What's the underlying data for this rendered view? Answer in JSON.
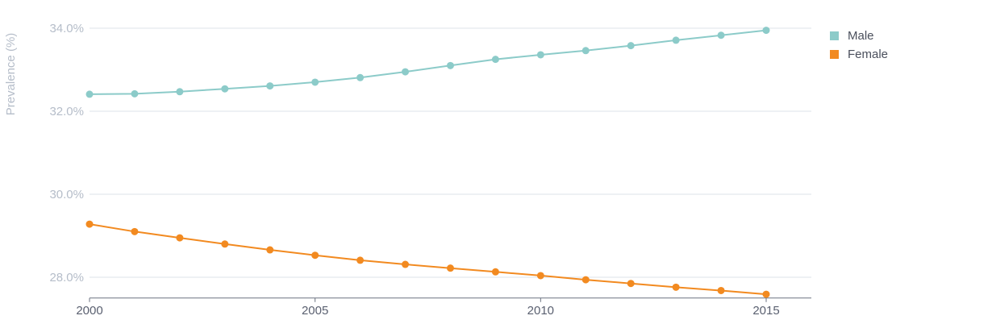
{
  "chart_data": {
    "type": "line",
    "ylabel": "Prevalence (%)",
    "xlabel": "",
    "x": [
      2000,
      2001,
      2002,
      2003,
      2004,
      2005,
      2006,
      2007,
      2008,
      2009,
      2010,
      2011,
      2012,
      2013,
      2014,
      2015
    ],
    "x_ticks": [
      "2000",
      "2005",
      "2010",
      "2015"
    ],
    "y_ticks": [
      "28.0%",
      "30.0%",
      "32.0%",
      "34.0%"
    ],
    "ylim": [
      27.5,
      34.3
    ],
    "grid": true,
    "legend_position": "top-right",
    "series": [
      {
        "name": "Male",
        "color": "#8ccbc9",
        "values": [
          32.41,
          32.42,
          32.47,
          32.54,
          32.61,
          32.7,
          32.81,
          32.95,
          33.1,
          33.25,
          33.36,
          33.46,
          33.58,
          33.71,
          33.83,
          33.95
        ]
      },
      {
        "name": "Female",
        "color": "#f28a20",
        "values": [
          29.28,
          29.1,
          28.95,
          28.8,
          28.66,
          28.53,
          28.41,
          28.31,
          28.22,
          28.13,
          28.04,
          27.94,
          27.85,
          27.76,
          27.68,
          27.59
        ]
      }
    ]
  }
}
